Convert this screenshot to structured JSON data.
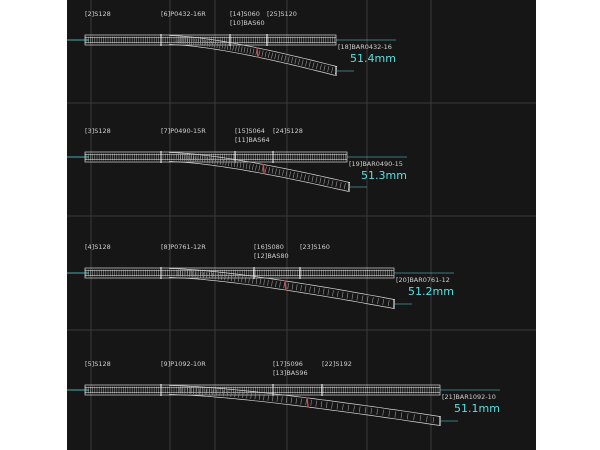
{
  "colors": {
    "background": "#161616",
    "grid": "#3a3a3a",
    "track_outline": "#d8d8d8",
    "sleeper": "#9a9a9a",
    "accent": "#58e0e0",
    "joint": "#e04040"
  },
  "layouts": [
    {
      "id": "row-1",
      "labels": {
        "straight_a": "[2]S128",
        "turnout": "[6]P0432-16R",
        "short_straight": "[14]S060",
        "adjust": "[10]BAS60",
        "straight_b": "[25]S120",
        "curve": "[18]BAR0432-16"
      },
      "distance": "51.4mm"
    },
    {
      "id": "row-2",
      "labels": {
        "straight_a": "[3]S128",
        "turnout": "[7]P0490-15R",
        "short_straight": "[15]S064",
        "adjust": "[11]BAS64",
        "straight_b": "[24]S128",
        "curve": "[19]BAR0490-15"
      },
      "distance": "51.3mm"
    },
    {
      "id": "row-3",
      "labels": {
        "straight_a": "[4]S128",
        "turnout": "[8]P0761-12R",
        "short_straight": "[16]S080",
        "adjust": "[12]BAS80",
        "straight_b": "[23]S160",
        "curve": "[20]BAR0761-12"
      },
      "distance": "51.2mm"
    },
    {
      "id": "row-4",
      "labels": {
        "straight_a": "[5]S128",
        "turnout": "[9]P1092-10R",
        "short_straight": "[17]S096",
        "adjust": "[13]BAS96",
        "straight_b": "[22]S192",
        "curve": "[21]BAR1092-10"
      },
      "distance": "51.1mm"
    }
  ]
}
